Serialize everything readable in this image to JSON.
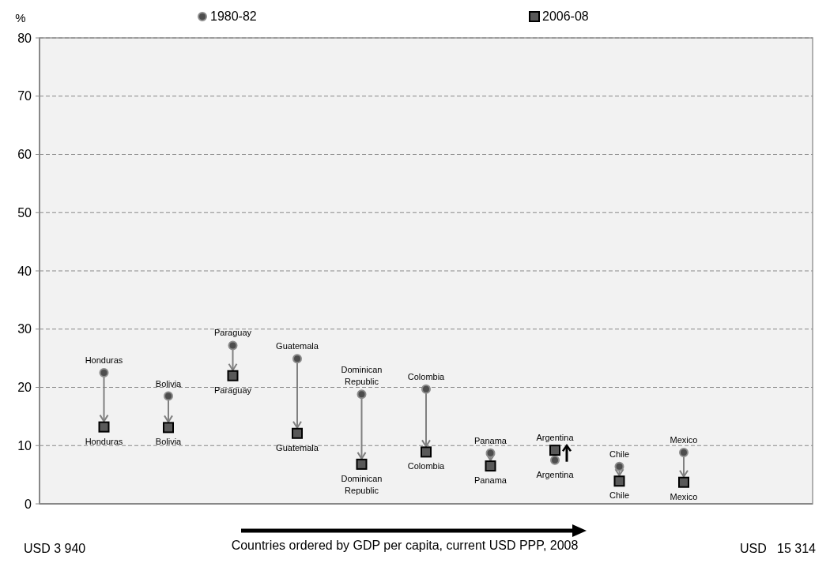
{
  "chart_data": {
    "type": "scatter",
    "ylabel": "%",
    "xlabel": "Countries ordered by GDP per capita, current USD PPP, 2008",
    "categories": [
      "Honduras",
      "Bolivia",
      "Paraguay",
      "Guatemala",
      "Dominican Republic",
      "Colombia",
      "Panama",
      "Argentina",
      "Chile",
      "Mexico"
    ],
    "series": [
      {
        "name": "1980-82",
        "color": "#4d4d4d",
        "marker": "circle",
        "values": [
          22.5,
          18.5,
          27.2,
          24.9,
          18.8,
          19.7,
          8.7,
          7.5,
          6.4,
          8.8
        ]
      },
      {
        "name": "2006-08",
        "color": "#595959",
        "marker": "square",
        "values": [
          13.2,
          13.1,
          22,
          12.1,
          6.8,
          8.9,
          6.5,
          9.2,
          3.9,
          3.7
        ]
      }
    ],
    "ylim": [
      0,
      80
    ],
    "yticks": [
      0,
      10,
      20,
      30,
      40,
      50,
      60,
      70,
      80
    ],
    "grid": "y",
    "legend": "top",
    "tick_labels": "y",
    "annotations": [
      "USD 3 940",
      "USD   15 314"
    ]
  }
}
